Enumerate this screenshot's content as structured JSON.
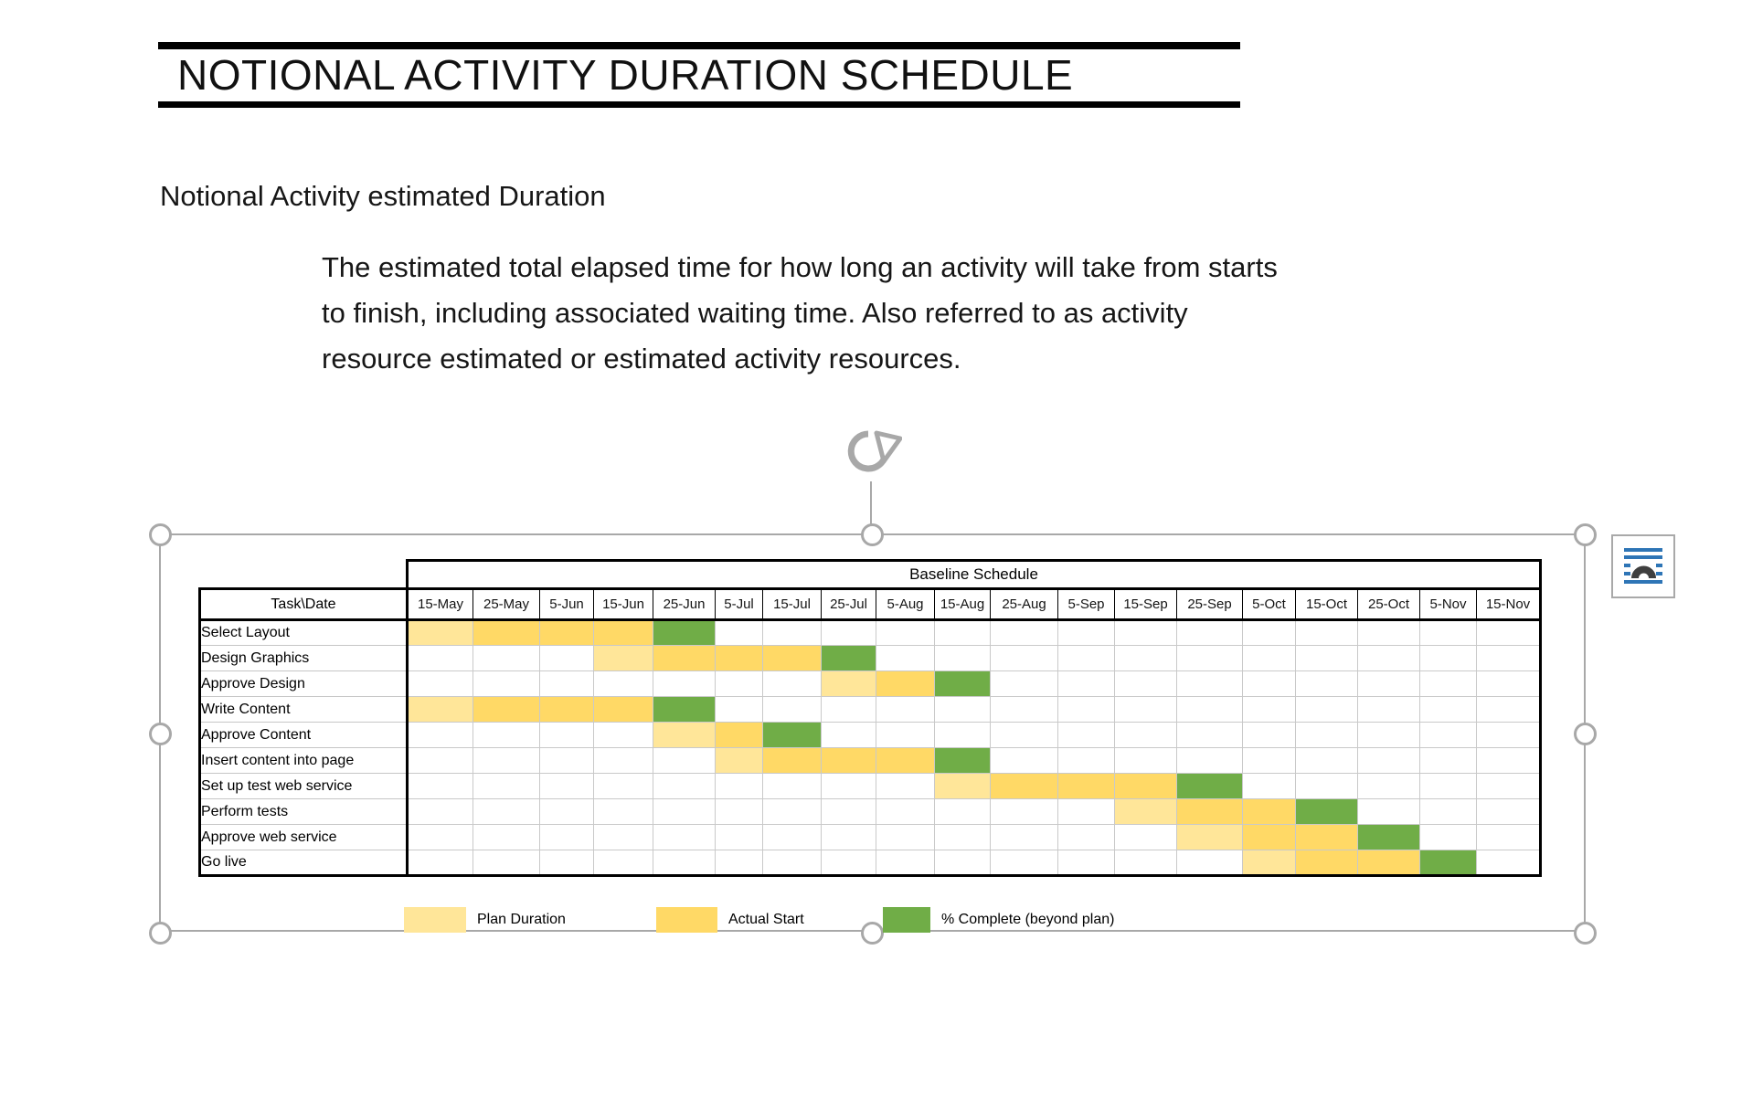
{
  "page": {
    "title": "NOTIONAL ACTIVITY DURATION SCHEDULE",
    "subtitle": "Notional Activity estimated Duration",
    "definition_lines": [
      "The estimated total elapsed time for how long an activity will take from starts",
      "to finish, including associated waiting time. Also referred to as activity",
      "resource estimated or estimated activity resources."
    ]
  },
  "colors": {
    "plan": "#FFE699",
    "actual": "#FFD966",
    "complete": "#70AD47",
    "grid_line": "#C6C6C6",
    "selection_gray": "#A8A8A8",
    "icon_blue": "#2E75B6"
  },
  "icons": {
    "rotate_handle": "rotate-arrow",
    "layout_options": "text-wrap-layout-options"
  },
  "chart_data": {
    "type": "table",
    "title": "Baseline Schedule",
    "corner_label": "Task\\Date",
    "columns": [
      "15-May",
      "25-May",
      "5-Jun",
      "15-Jun",
      "25-Jun",
      "5-Jul",
      "15-Jul",
      "25-Jul",
      "5-Aug",
      "15-Aug",
      "25-Aug",
      "5-Sep",
      "15-Sep",
      "25-Sep",
      "5-Oct",
      "15-Oct",
      "25-Oct",
      "5-Nov",
      "15-Nov"
    ],
    "cell_states": [
      "plan",
      "actual",
      "complete"
    ],
    "tasks": [
      {
        "name": "Select Layout",
        "cells": [
          "plan",
          "actual",
          "actual",
          "actual",
          "complete",
          "",
          "",
          "",
          "",
          "",
          "",
          "",
          "",
          "",
          "",
          "",
          "",
          "",
          ""
        ]
      },
      {
        "name": "Design Graphics",
        "cells": [
          "",
          "",
          "",
          "plan",
          "actual",
          "actual",
          "actual",
          "complete",
          "",
          "",
          "",
          "",
          "",
          "",
          "",
          "",
          "",
          "",
          ""
        ]
      },
      {
        "name": "Approve Design",
        "cells": [
          "",
          "",
          "",
          "",
          "",
          "",
          "",
          "plan",
          "actual",
          "complete",
          "",
          "",
          "",
          "",
          "",
          "",
          "",
          "",
          ""
        ]
      },
      {
        "name": "Write Content",
        "cells": [
          "plan",
          "actual",
          "actual",
          "actual",
          "complete",
          "",
          "",
          "",
          "",
          "",
          "",
          "",
          "",
          "",
          "",
          "",
          "",
          "",
          ""
        ]
      },
      {
        "name": "Approve Content",
        "cells": [
          "",
          "",
          "",
          "",
          "plan",
          "actual",
          "complete",
          "",
          "",
          "",
          "",
          "",
          "",
          "",
          "",
          "",
          "",
          "",
          ""
        ]
      },
      {
        "name": "Insert content into page",
        "cells": [
          "",
          "",
          "",
          "",
          "",
          "plan",
          "actual",
          "actual",
          "actual",
          "complete",
          "",
          "",
          "",
          "",
          "",
          "",
          "",
          "",
          ""
        ]
      },
      {
        "name": "Set up test web service",
        "cells": [
          "",
          "",
          "",
          "",
          "",
          "",
          "",
          "",
          "",
          "plan",
          "actual",
          "actual",
          "actual",
          "complete",
          "",
          "",
          "",
          "",
          ""
        ]
      },
      {
        "name": "Perform tests",
        "cells": [
          "",
          "",
          "",
          "",
          "",
          "",
          "",
          "",
          "",
          "",
          "",
          "",
          "plan",
          "actual",
          "actual",
          "complete",
          "",
          "",
          ""
        ]
      },
      {
        "name": "Approve web service",
        "cells": [
          "",
          "",
          "",
          "",
          "",
          "",
          "",
          "",
          "",
          "",
          "",
          "",
          "",
          "plan",
          "actual",
          "actual",
          "complete",
          "",
          ""
        ]
      },
      {
        "name": "Go live",
        "cells": [
          "",
          "",
          "",
          "",
          "",
          "",
          "",
          "",
          "",
          "",
          "",
          "",
          "",
          "",
          "plan",
          "actual",
          "actual",
          "complete",
          ""
        ]
      }
    ],
    "legend": [
      {
        "label": "Plan Duration",
        "type": "plan"
      },
      {
        "label": "Actual Start",
        "type": "actual"
      },
      {
        "label": "% Complete (beyond plan)",
        "type": "complete"
      }
    ]
  }
}
